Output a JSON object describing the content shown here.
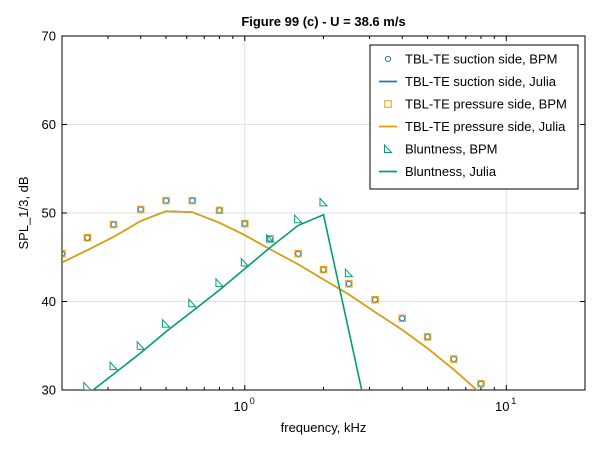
{
  "chart_data": {
    "type": "line",
    "title": "Figure 99 (c) - U = 38.6 m/s",
    "xlabel": "frequency, kHz",
    "ylabel": "SPL_1/3, dB",
    "xscale": "log",
    "xlim": [
      0.2,
      20
    ],
    "ylim": [
      30,
      70
    ],
    "x_ticks": [
      1,
      10
    ],
    "x_tick_labels": [
      {
        "base": "10",
        "exp": "0"
      },
      {
        "base": "10",
        "exp": "1"
      }
    ],
    "y_ticks": [
      30,
      40,
      50,
      60,
      70
    ],
    "y_tick_labels": [
      "30",
      "40",
      "50",
      "60",
      "70"
    ],
    "grid": true,
    "legend_position": "top-right",
    "colors": {
      "blue": "#1f77b4",
      "orange": "#e69f00",
      "green": "#009e73"
    },
    "series": [
      {
        "name": "TBL-TE suction side, BPM",
        "kind": "marker",
        "marker": "circle",
        "color": "#1f77b4",
        "x": [
          0.2,
          0.25,
          0.315,
          0.4,
          0.5,
          0.63,
          0.8,
          1.0,
          1.25,
          1.6,
          2.0,
          2.5,
          3.15,
          4.0,
          5.0,
          6.3,
          8.0
        ],
        "y": [
          45.4,
          47.2,
          48.7,
          50.4,
          51.4,
          51.4,
          50.3,
          48.8,
          47.1,
          45.4,
          43.6,
          42.0,
          40.2,
          38.1,
          36.0,
          33.5,
          30.7
        ]
      },
      {
        "name": "TBL-TE suction side, Julia",
        "kind": "line",
        "color": "#1f77b4",
        "x": [
          0.2,
          0.25,
          0.315,
          0.4,
          0.5,
          0.63,
          0.8,
          1.0,
          1.25,
          1.6,
          2.0,
          2.5,
          3.15,
          4.0,
          5.0,
          6.3,
          8.0
        ],
        "y": [
          44.4,
          45.8,
          47.3,
          49.1,
          50.2,
          50.1,
          48.9,
          47.5,
          45.9,
          44.2,
          42.5,
          40.8,
          38.8,
          36.8,
          34.7,
          32.3,
          29.6
        ]
      },
      {
        "name": "TBL-TE pressure side, BPM",
        "kind": "marker",
        "marker": "square",
        "color": "#e69f00",
        "x": [
          0.2,
          0.25,
          0.315,
          0.4,
          0.5,
          0.63,
          0.8,
          1.0,
          1.25,
          1.6,
          2.0,
          2.5,
          3.15,
          4.0,
          5.0,
          6.3,
          8.0
        ],
        "y": [
          45.4,
          47.2,
          48.7,
          50.4,
          51.4,
          51.4,
          50.3,
          48.8,
          47.1,
          45.4,
          43.6,
          42.0,
          40.2,
          38.1,
          36.0,
          33.5,
          30.7
        ]
      },
      {
        "name": "TBL-TE pressure side, Julia",
        "kind": "line",
        "color": "#e69f00",
        "x": [
          0.2,
          0.25,
          0.315,
          0.4,
          0.5,
          0.63,
          0.8,
          1.0,
          1.25,
          1.6,
          2.0,
          2.5,
          3.15,
          4.0,
          5.0,
          6.3,
          8.0
        ],
        "y": [
          44.4,
          45.8,
          47.3,
          49.1,
          50.2,
          50.1,
          48.9,
          47.5,
          45.9,
          44.2,
          42.5,
          40.8,
          38.8,
          36.8,
          34.7,
          32.3,
          29.6
        ]
      },
      {
        "name": "Bluntness, BPM",
        "kind": "marker",
        "marker": "triangle",
        "color": "#009e73",
        "x": [
          0.25,
          0.315,
          0.4,
          0.5,
          0.63,
          0.8,
          1.0,
          1.25,
          1.6,
          2.0,
          2.5
        ],
        "y": [
          30.4,
          32.7,
          35.0,
          37.5,
          39.8,
          42.1,
          44.4,
          47.1,
          49.3,
          51.2,
          43.2
        ]
      },
      {
        "name": "Bluntness, Julia",
        "kind": "line",
        "color": "#009e73",
        "x": [
          0.25,
          0.315,
          0.4,
          0.5,
          0.63,
          0.8,
          1.0,
          1.25,
          1.6,
          2.0,
          2.8
        ],
        "y": [
          29.5,
          31.8,
          34.2,
          36.6,
          38.9,
          41.3,
          43.7,
          46.1,
          48.6,
          49.8,
          30.0
        ]
      }
    ]
  }
}
